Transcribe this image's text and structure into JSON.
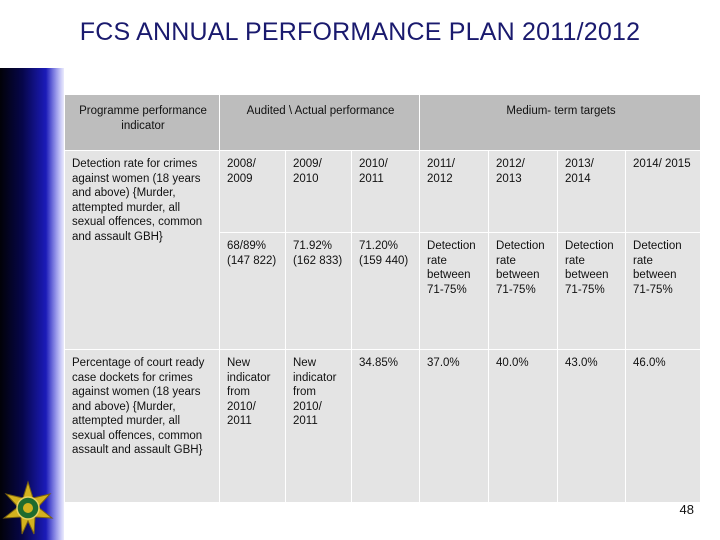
{
  "slide": {
    "title": "FCS ANNUAL PERFORMANCE PLAN 2011/2012",
    "page_number": "48"
  },
  "table": {
    "headers": {
      "indicator": "Programme performance indicator",
      "audited": "Audited \\ Actual performance",
      "targets": "Medium- term targets"
    },
    "row1": {
      "indicator": "Detection rate for crimes against women (18 years and above) {Murder, attempted murder, all sexual offences, common and assault GBH}",
      "years": [
        "2008/ 2009",
        "2009/ 2010",
        "2010/ 2011",
        "2011/ 2012",
        "2012/ 2013",
        "2013/ 2014",
        "2014/ 2015"
      ],
      "values": [
        "68/89% (147 822)",
        "71.92% (162 833)",
        "71.20% (159 440)",
        "Detection rate between 71-75%",
        "Detection rate between 71-75%",
        "Detection rate between 71-75%",
        "Detection rate between 71-75%"
      ]
    },
    "row2": {
      "indicator": "Percentage of court ready case dockets for crimes against women (18 years and above) {Murder, attempted murder, all sexual offences, common assault and assault GBH}",
      "values": [
        "New indicator from 2010/ 2011",
        "New indicator from 2010/ 2011",
        "34.85%",
        "37.0%",
        "40.0%",
        "43.0%",
        "46.0%"
      ]
    }
  },
  "colors": {
    "title": "#1a1a6e",
    "header_cell": "#bdbdbd",
    "body_cell": "#e4e4e4",
    "band": "#06064a"
  },
  "icons": {
    "emblem": "saps-star-emblem"
  }
}
